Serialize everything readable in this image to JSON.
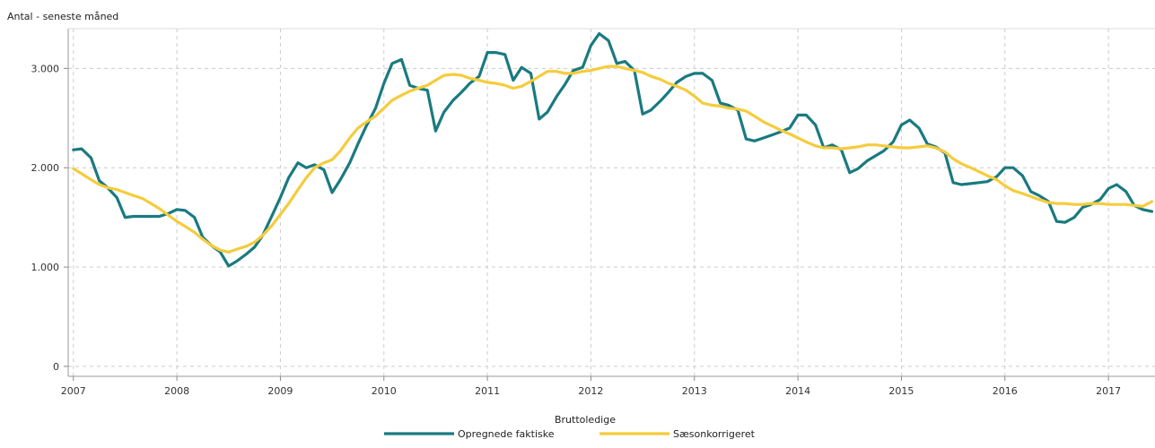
{
  "chart_data": {
    "type": "line",
    "title": "",
    "ylabel": "Antal - seneste måned",
    "xlabel": "",
    "ylim": [
      -100,
      3400
    ],
    "xlim": [
      2006.95,
      2017.45
    ],
    "x_ticks": [
      2007,
      2008,
      2009,
      2010,
      2011,
      2012,
      2013,
      2014,
      2015,
      2016,
      2017
    ],
    "y_ticks": [
      0,
      1000,
      2000,
      3000
    ],
    "x_tick_labels": [
      "2007",
      "2008",
      "2009",
      "2010",
      "2011",
      "2012",
      "2013",
      "2014",
      "2015",
      "2016",
      "2017"
    ],
    "y_tick_labels": [
      "0",
      "1.000",
      "2.000",
      "3.000"
    ],
    "grid": true,
    "legend": {
      "title": "Bruttoledige",
      "placement": "bottom-center"
    },
    "series": [
      {
        "name": "Opregnede faktiske",
        "color": "#1a7a80",
        "points": [
          [
            2007.0,
            2180
          ],
          [
            2007.08,
            2190
          ],
          [
            2007.17,
            2100
          ],
          [
            2007.25,
            1870
          ],
          [
            2007.33,
            1800
          ],
          [
            2007.42,
            1700
          ],
          [
            2007.5,
            1500
          ],
          [
            2007.58,
            1510
          ],
          [
            2007.67,
            1510
          ],
          [
            2007.75,
            1510
          ],
          [
            2007.83,
            1510
          ],
          [
            2007.92,
            1540
          ],
          [
            2008.0,
            1580
          ],
          [
            2008.08,
            1570
          ],
          [
            2008.17,
            1500
          ],
          [
            2008.25,
            1300
          ],
          [
            2008.33,
            1220
          ],
          [
            2008.42,
            1150
          ],
          [
            2008.5,
            1010
          ],
          [
            2008.58,
            1060
          ],
          [
            2008.67,
            1130
          ],
          [
            2008.75,
            1200
          ],
          [
            2008.83,
            1320
          ],
          [
            2008.92,
            1520
          ],
          [
            2009.0,
            1700
          ],
          [
            2009.08,
            1900
          ],
          [
            2009.17,
            2050
          ],
          [
            2009.25,
            2000
          ],
          [
            2009.33,
            2030
          ],
          [
            2009.42,
            1980
          ],
          [
            2009.5,
            1750
          ],
          [
            2009.58,
            1880
          ],
          [
            2009.67,
            2050
          ],
          [
            2009.75,
            2240
          ],
          [
            2009.83,
            2420
          ],
          [
            2009.92,
            2600
          ],
          [
            2010.0,
            2850
          ],
          [
            2010.08,
            3050
          ],
          [
            2010.17,
            3090
          ],
          [
            2010.25,
            2830
          ],
          [
            2010.33,
            2800
          ],
          [
            2010.42,
            2780
          ],
          [
            2010.5,
            2370
          ],
          [
            2010.58,
            2560
          ],
          [
            2010.67,
            2680
          ],
          [
            2010.75,
            2760
          ],
          [
            2010.83,
            2850
          ],
          [
            2010.92,
            2920
          ],
          [
            2011.0,
            3160
          ],
          [
            2011.08,
            3160
          ],
          [
            2011.17,
            3140
          ],
          [
            2011.25,
            2880
          ],
          [
            2011.33,
            3010
          ],
          [
            2011.42,
            2950
          ],
          [
            2011.5,
            2490
          ],
          [
            2011.58,
            2560
          ],
          [
            2011.67,
            2720
          ],
          [
            2011.75,
            2840
          ],
          [
            2011.83,
            2980
          ],
          [
            2011.92,
            3010
          ],
          [
            2012.0,
            3230
          ],
          [
            2012.08,
            3350
          ],
          [
            2012.17,
            3280
          ],
          [
            2012.25,
            3050
          ],
          [
            2012.33,
            3070
          ],
          [
            2012.42,
            2980
          ],
          [
            2012.5,
            2540
          ],
          [
            2012.58,
            2580
          ],
          [
            2012.67,
            2670
          ],
          [
            2012.75,
            2760
          ],
          [
            2012.83,
            2860
          ],
          [
            2012.92,
            2920
          ],
          [
            2013.0,
            2950
          ],
          [
            2013.08,
            2950
          ],
          [
            2013.17,
            2880
          ],
          [
            2013.25,
            2650
          ],
          [
            2013.33,
            2630
          ],
          [
            2013.42,
            2580
          ],
          [
            2013.5,
            2290
          ],
          [
            2013.58,
            2270
          ],
          [
            2013.67,
            2300
          ],
          [
            2013.75,
            2330
          ],
          [
            2013.83,
            2360
          ],
          [
            2013.92,
            2400
          ],
          [
            2014.0,
            2530
          ],
          [
            2014.08,
            2530
          ],
          [
            2014.17,
            2430
          ],
          [
            2014.25,
            2200
          ],
          [
            2014.33,
            2230
          ],
          [
            2014.42,
            2180
          ],
          [
            2014.5,
            1950
          ],
          [
            2014.58,
            1990
          ],
          [
            2014.67,
            2070
          ],
          [
            2014.75,
            2120
          ],
          [
            2014.83,
            2170
          ],
          [
            2014.92,
            2260
          ],
          [
            2015.0,
            2430
          ],
          [
            2015.08,
            2480
          ],
          [
            2015.17,
            2400
          ],
          [
            2015.25,
            2240
          ],
          [
            2015.33,
            2210
          ],
          [
            2015.42,
            2150
          ],
          [
            2015.5,
            1850
          ],
          [
            2015.58,
            1830
          ],
          [
            2015.67,
            1840
          ],
          [
            2015.75,
            1850
          ],
          [
            2015.83,
            1860
          ],
          [
            2015.92,
            1910
          ],
          [
            2016.0,
            2000
          ],
          [
            2016.08,
            2000
          ],
          [
            2016.17,
            1920
          ],
          [
            2016.25,
            1760
          ],
          [
            2016.33,
            1720
          ],
          [
            2016.42,
            1660
          ],
          [
            2016.5,
            1460
          ],
          [
            2016.58,
            1450
          ],
          [
            2016.67,
            1500
          ],
          [
            2016.75,
            1600
          ],
          [
            2016.83,
            1630
          ],
          [
            2016.92,
            1680
          ],
          [
            2017.0,
            1790
          ],
          [
            2017.08,
            1830
          ],
          [
            2017.17,
            1760
          ],
          [
            2017.25,
            1620
          ],
          [
            2017.33,
            1580
          ],
          [
            2017.42,
            1560
          ]
        ]
      },
      {
        "name": "Sæsonkorrigeret",
        "color": "#f5cc3c",
        "points": [
          [
            2007.0,
            1990
          ],
          [
            2007.08,
            1940
          ],
          [
            2007.17,
            1880
          ],
          [
            2007.25,
            1830
          ],
          [
            2007.33,
            1800
          ],
          [
            2007.42,
            1780
          ],
          [
            2007.5,
            1750
          ],
          [
            2007.58,
            1720
          ],
          [
            2007.67,
            1690
          ],
          [
            2007.75,
            1640
          ],
          [
            2007.83,
            1590
          ],
          [
            2007.92,
            1520
          ],
          [
            2008.0,
            1460
          ],
          [
            2008.08,
            1410
          ],
          [
            2008.17,
            1350
          ],
          [
            2008.25,
            1280
          ],
          [
            2008.33,
            1220
          ],
          [
            2008.42,
            1170
          ],
          [
            2008.5,
            1150
          ],
          [
            2008.58,
            1180
          ],
          [
            2008.67,
            1210
          ],
          [
            2008.75,
            1250
          ],
          [
            2008.83,
            1320
          ],
          [
            2008.92,
            1420
          ],
          [
            2009.0,
            1530
          ],
          [
            2009.08,
            1640
          ],
          [
            2009.17,
            1780
          ],
          [
            2009.25,
            1900
          ],
          [
            2009.33,
            2000
          ],
          [
            2009.42,
            2050
          ],
          [
            2009.5,
            2080
          ],
          [
            2009.58,
            2170
          ],
          [
            2009.67,
            2300
          ],
          [
            2009.75,
            2400
          ],
          [
            2009.83,
            2460
          ],
          [
            2009.92,
            2520
          ],
          [
            2010.0,
            2600
          ],
          [
            2010.08,
            2680
          ],
          [
            2010.17,
            2730
          ],
          [
            2010.25,
            2770
          ],
          [
            2010.33,
            2800
          ],
          [
            2010.42,
            2830
          ],
          [
            2010.5,
            2880
          ],
          [
            2010.58,
            2930
          ],
          [
            2010.67,
            2940
          ],
          [
            2010.75,
            2930
          ],
          [
            2010.83,
            2900
          ],
          [
            2010.92,
            2880
          ],
          [
            2011.0,
            2860
          ],
          [
            2011.08,
            2850
          ],
          [
            2011.17,
            2830
          ],
          [
            2011.25,
            2800
          ],
          [
            2011.33,
            2820
          ],
          [
            2011.42,
            2870
          ],
          [
            2011.5,
            2920
          ],
          [
            2011.58,
            2970
          ],
          [
            2011.67,
            2970
          ],
          [
            2011.75,
            2950
          ],
          [
            2011.83,
            2950
          ],
          [
            2011.92,
            2970
          ],
          [
            2012.0,
            2980
          ],
          [
            2012.08,
            3000
          ],
          [
            2012.17,
            3020
          ],
          [
            2012.25,
            3020
          ],
          [
            2012.33,
            3000
          ],
          [
            2012.42,
            2980
          ],
          [
            2012.5,
            2960
          ],
          [
            2012.58,
            2920
          ],
          [
            2012.67,
            2890
          ],
          [
            2012.75,
            2850
          ],
          [
            2012.83,
            2820
          ],
          [
            2012.92,
            2780
          ],
          [
            2013.0,
            2720
          ],
          [
            2013.08,
            2650
          ],
          [
            2013.17,
            2630
          ],
          [
            2013.25,
            2620
          ],
          [
            2013.33,
            2600
          ],
          [
            2013.42,
            2590
          ],
          [
            2013.5,
            2570
          ],
          [
            2013.58,
            2520
          ],
          [
            2013.67,
            2460
          ],
          [
            2013.75,
            2420
          ],
          [
            2013.83,
            2380
          ],
          [
            2013.92,
            2340
          ],
          [
            2014.0,
            2300
          ],
          [
            2014.08,
            2260
          ],
          [
            2014.17,
            2220
          ],
          [
            2014.25,
            2200
          ],
          [
            2014.33,
            2200
          ],
          [
            2014.42,
            2190
          ],
          [
            2014.5,
            2200
          ],
          [
            2014.58,
            2210
          ],
          [
            2014.67,
            2230
          ],
          [
            2014.75,
            2230
          ],
          [
            2014.83,
            2220
          ],
          [
            2014.92,
            2210
          ],
          [
            2015.0,
            2200
          ],
          [
            2015.08,
            2200
          ],
          [
            2015.17,
            2210
          ],
          [
            2015.25,
            2220
          ],
          [
            2015.33,
            2200
          ],
          [
            2015.42,
            2160
          ],
          [
            2015.5,
            2090
          ],
          [
            2015.58,
            2040
          ],
          [
            2015.67,
            2000
          ],
          [
            2015.75,
            1960
          ],
          [
            2015.83,
            1920
          ],
          [
            2015.92,
            1880
          ],
          [
            2016.0,
            1820
          ],
          [
            2016.08,
            1770
          ],
          [
            2016.17,
            1740
          ],
          [
            2016.25,
            1710
          ],
          [
            2016.33,
            1680
          ],
          [
            2016.42,
            1650
          ],
          [
            2016.5,
            1640
          ],
          [
            2016.58,
            1640
          ],
          [
            2016.67,
            1630
          ],
          [
            2016.75,
            1630
          ],
          [
            2016.83,
            1640
          ],
          [
            2016.92,
            1640
          ],
          [
            2017.0,
            1630
          ],
          [
            2017.08,
            1630
          ],
          [
            2017.17,
            1630
          ],
          [
            2017.25,
            1620
          ],
          [
            2017.33,
            1610
          ],
          [
            2017.42,
            1660
          ]
        ]
      }
    ]
  }
}
